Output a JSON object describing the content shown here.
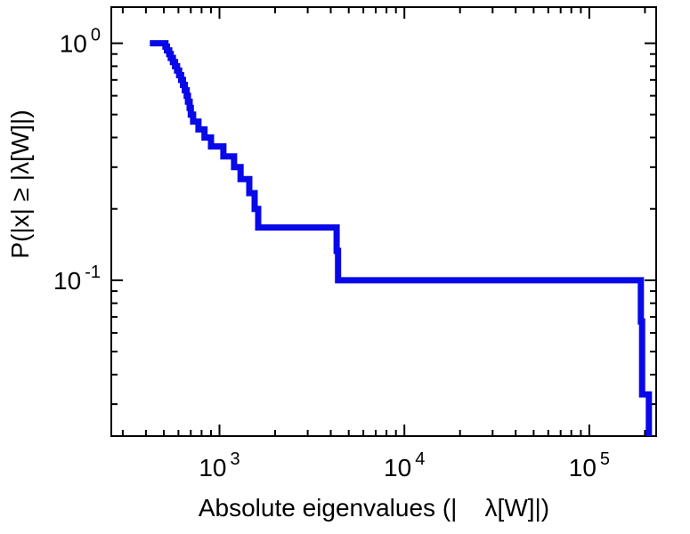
{
  "chart_data": {
    "type": "line",
    "subtype": "step-ccdf",
    "title": "",
    "xlabel": "Absolute eigenvalues (|λ[W]|)",
    "xlabel_display": "Absolute eigenvalues (|    λ[W]|)",
    "ylabel": "P(|x| ≥ |λ[W]|)",
    "x_scale": "log",
    "y_scale": "log",
    "xlim": [
      260,
      230000
    ],
    "ylim": [
      0.022,
      1.42
    ],
    "x_major_ticks": [
      1000,
      10000,
      100000
    ],
    "y_major_ticks": [
      1,
      0.1
    ],
    "tick_label_base": "10",
    "line_color": "#0808e8",
    "line_width": 7,
    "frame_color": "#000000",
    "background": "#ffffff",
    "grid": false,
    "legend": false,
    "start": {
      "x": 420,
      "p": 1.0
    },
    "steps": [
      {
        "x": 510,
        "p": 0.967
      },
      {
        "x": 520,
        "p": 0.933
      },
      {
        "x": 535,
        "p": 0.9
      },
      {
        "x": 545,
        "p": 0.867
      },
      {
        "x": 560,
        "p": 0.833
      },
      {
        "x": 575,
        "p": 0.8
      },
      {
        "x": 590,
        "p": 0.767
      },
      {
        "x": 605,
        "p": 0.733
      },
      {
        "x": 620,
        "p": 0.7
      },
      {
        "x": 635,
        "p": 0.667
      },
      {
        "x": 650,
        "p": 0.633
      },
      {
        "x": 665,
        "p": 0.6
      },
      {
        "x": 675,
        "p": 0.567
      },
      {
        "x": 690,
        "p": 0.533
      },
      {
        "x": 700,
        "p": 0.5
      },
      {
        "x": 720,
        "p": 0.467
      },
      {
        "x": 770,
        "p": 0.433
      },
      {
        "x": 830,
        "p": 0.4
      },
      {
        "x": 900,
        "p": 0.367
      },
      {
        "x": 1050,
        "p": 0.333
      },
      {
        "x": 1200,
        "p": 0.3
      },
      {
        "x": 1300,
        "p": 0.267
      },
      {
        "x": 1450,
        "p": 0.233
      },
      {
        "x": 1550,
        "p": 0.2
      },
      {
        "x": 1620,
        "p": 0.167
      },
      {
        "x": 4300,
        "p": 0.133
      },
      {
        "x": 4380,
        "p": 0.1
      },
      {
        "x": 190000,
        "p": 0.067
      },
      {
        "x": 193000,
        "p": 0.033
      },
      {
        "x": 210000,
        "p": 0
      }
    ]
  }
}
